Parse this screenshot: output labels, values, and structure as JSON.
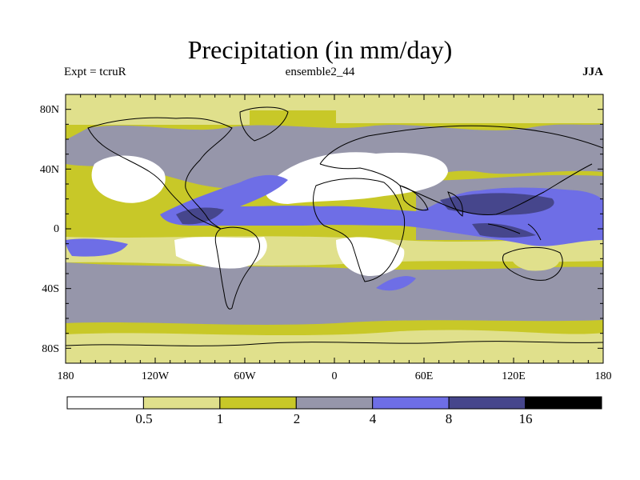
{
  "title": "Precipitation (in mm/day)",
  "experiment_label": "Expt = tcruR",
  "run_label": "ensemble2_44",
  "season_label": "JJA",
  "map": {
    "projection": "cylindrical-equidistant",
    "lat_ticks": [
      "80N",
      "40N",
      "0",
      "40S",
      "80S"
    ],
    "lon_ticks": [
      "180",
      "120W",
      "60W",
      "0",
      "60E",
      "120E",
      "180"
    ],
    "lat_range": [
      -90,
      90
    ],
    "lon_range": [
      -180,
      180
    ],
    "regions": [
      {
        "area": "Pacific ITCZ (Central America)",
        "range": "8-16"
      },
      {
        "area": "Indian Ocean / SE Asia monsoon",
        "range": "8-16"
      },
      {
        "area": "Tropical Atlantic",
        "range": "4-8"
      },
      {
        "area": "Sahara / Arabia",
        "range": "<0.5"
      },
      {
        "area": "South Atlantic subtropics",
        "range": "<0.5"
      },
      {
        "area": "Southern Ocean storm track",
        "range": "2-4"
      },
      {
        "area": "Antarctica",
        "range": "0.5-1"
      }
    ]
  },
  "colorbar": {
    "levels": [
      "0.5",
      "1",
      "2",
      "4",
      "8",
      "16"
    ],
    "colors": [
      "#ffffff",
      "#e0e08c",
      "#c8c828",
      "#9696aa",
      "#6e6ee6",
      "#46468c",
      "#000000"
    ]
  }
}
